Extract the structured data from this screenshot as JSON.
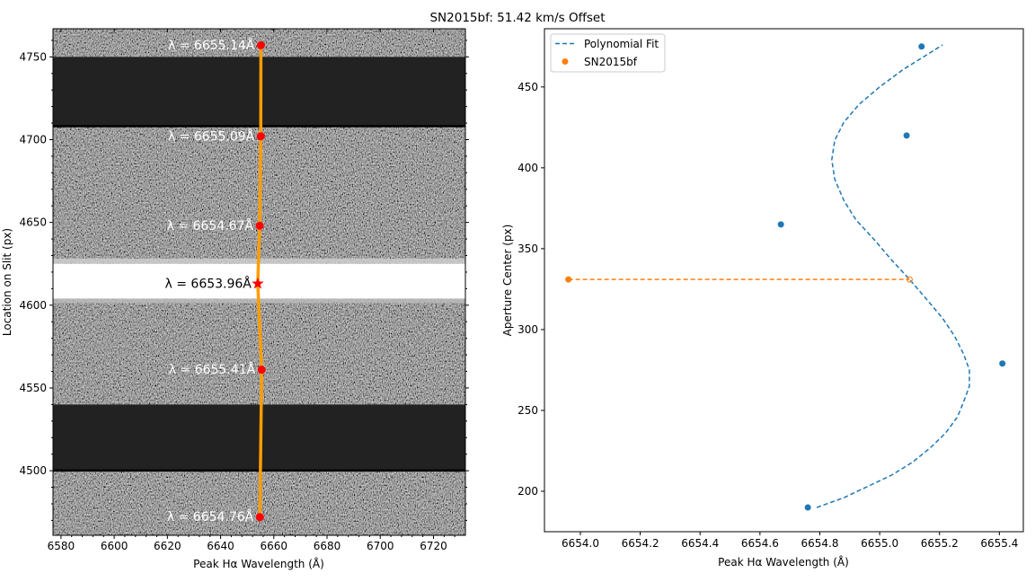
{
  "figure": {
    "suptitle": "SN2015bf: 51.42 km/s Offset"
  },
  "colors": {
    "fit": "#1f77b4",
    "points": "#1f77b4",
    "sn": "#ff7f0e",
    "trace": "#ff9d00",
    "peaks": "#ff0000",
    "image_bg": "#222222"
  },
  "chart_data": [
    {
      "type": "image",
      "xlabel": "Peak Hα Wavelength (Å)",
      "ylabel": "Location on Slit (px)",
      "xlim": [
        6577,
        6732
      ],
      "ylim": [
        4461,
        4767
      ],
      "xticks": [
        6580,
        6600,
        6620,
        6640,
        6660,
        6680,
        6700,
        6720
      ],
      "yticks": [
        4500,
        4550,
        4600,
        4650,
        4700,
        4750
      ],
      "bright_band": [
        4604,
        4625
      ],
      "dark_gaps": [
        [
          4500,
          4540
        ],
        [
          4708,
          4750
        ]
      ],
      "trace": [
        {
          "x": 6655.14,
          "y": 4757
        },
        {
          "x": 6655.09,
          "y": 4702
        },
        {
          "x": 6654.67,
          "y": 4648
        },
        {
          "x": 6653.96,
          "y": 4613
        },
        {
          "x": 6655.41,
          "y": 4561
        },
        {
          "x": 6654.76,
          "y": 4472
        }
      ],
      "annotations": [
        {
          "label": "λ = 6655.14Å",
          "x": 6655.14,
          "y": 4757,
          "marker": "circle"
        },
        {
          "label": "λ = 6655.09Å",
          "x": 6655.09,
          "y": 4702,
          "marker": "circle"
        },
        {
          "label": "λ = 6654.67Å",
          "x": 6654.67,
          "y": 4648,
          "marker": "circle"
        },
        {
          "label": "λ = 6653.96Å",
          "x": 6653.96,
          "y": 4613,
          "marker": "star"
        },
        {
          "label": "λ = 6655.41Å",
          "x": 6655.41,
          "y": 4561,
          "marker": "circle"
        },
        {
          "label": "λ = 6654.76Å",
          "x": 6654.76,
          "y": 4472,
          "marker": "circle"
        }
      ]
    },
    {
      "type": "scatter",
      "xlabel": "Peak Hα Wavelength (Å)",
      "ylabel": "Aperture Center (px)",
      "xlim": [
        6653.88,
        6655.48
      ],
      "ylim": [
        175,
        486
      ],
      "xticks": [
        6654.0,
        6654.2,
        6654.4,
        6654.6,
        6654.8,
        6655.0,
        6655.2,
        6655.4
      ],
      "yticks": [
        200,
        250,
        300,
        350,
        400,
        450
      ],
      "legend_position": "top-left",
      "series": [
        {
          "name": "Polynomial Fit",
          "kind": "line",
          "style": "dashed",
          "points": [
            [
              6654.79,
              190
            ],
            [
              6654.88,
              196
            ],
            [
              6654.96,
              203
            ],
            [
              6655.04,
              210
            ],
            [
              6655.11,
              218
            ],
            [
              6655.17,
              227
            ],
            [
              6655.22,
              236
            ],
            [
              6655.26,
              246
            ],
            [
              6655.28,
              255
            ],
            [
              6655.3,
              265
            ],
            [
              6655.3,
              275
            ],
            [
              6655.28,
              285
            ],
            [
              6655.25,
              296
            ],
            [
              6655.21,
              307
            ],
            [
              6655.16,
              318
            ],
            [
              6655.1,
              331
            ],
            [
              6655.04,
              343
            ],
            [
              6654.98,
              356
            ],
            [
              6654.92,
              368
            ],
            [
              6654.88,
              380
            ],
            [
              6654.85,
              393
            ],
            [
              6654.84,
              405
            ],
            [
              6654.85,
              417
            ],
            [
              6654.88,
              428
            ],
            [
              6654.93,
              439
            ],
            [
              6655.0,
              450
            ],
            [
              6655.08,
              461
            ],
            [
              6655.15,
              469
            ],
            [
              6655.21,
              476
            ]
          ]
        },
        {
          "name": "",
          "kind": "points",
          "points": [
            [
              6654.76,
              190
            ],
            [
              6654.67,
              365
            ],
            [
              6655.09,
              420
            ],
            [
              6655.14,
              475
            ],
            [
              6655.41,
              279
            ]
          ]
        },
        {
          "name": "SN2015bf",
          "kind": "points",
          "points": [
            [
              6653.96,
              331
            ]
          ]
        },
        {
          "name": "",
          "kind": "line",
          "style": "dashed",
          "points": [
            [
              6653.96,
              331
            ],
            [
              6655.1,
              331
            ]
          ]
        }
      ]
    }
  ]
}
